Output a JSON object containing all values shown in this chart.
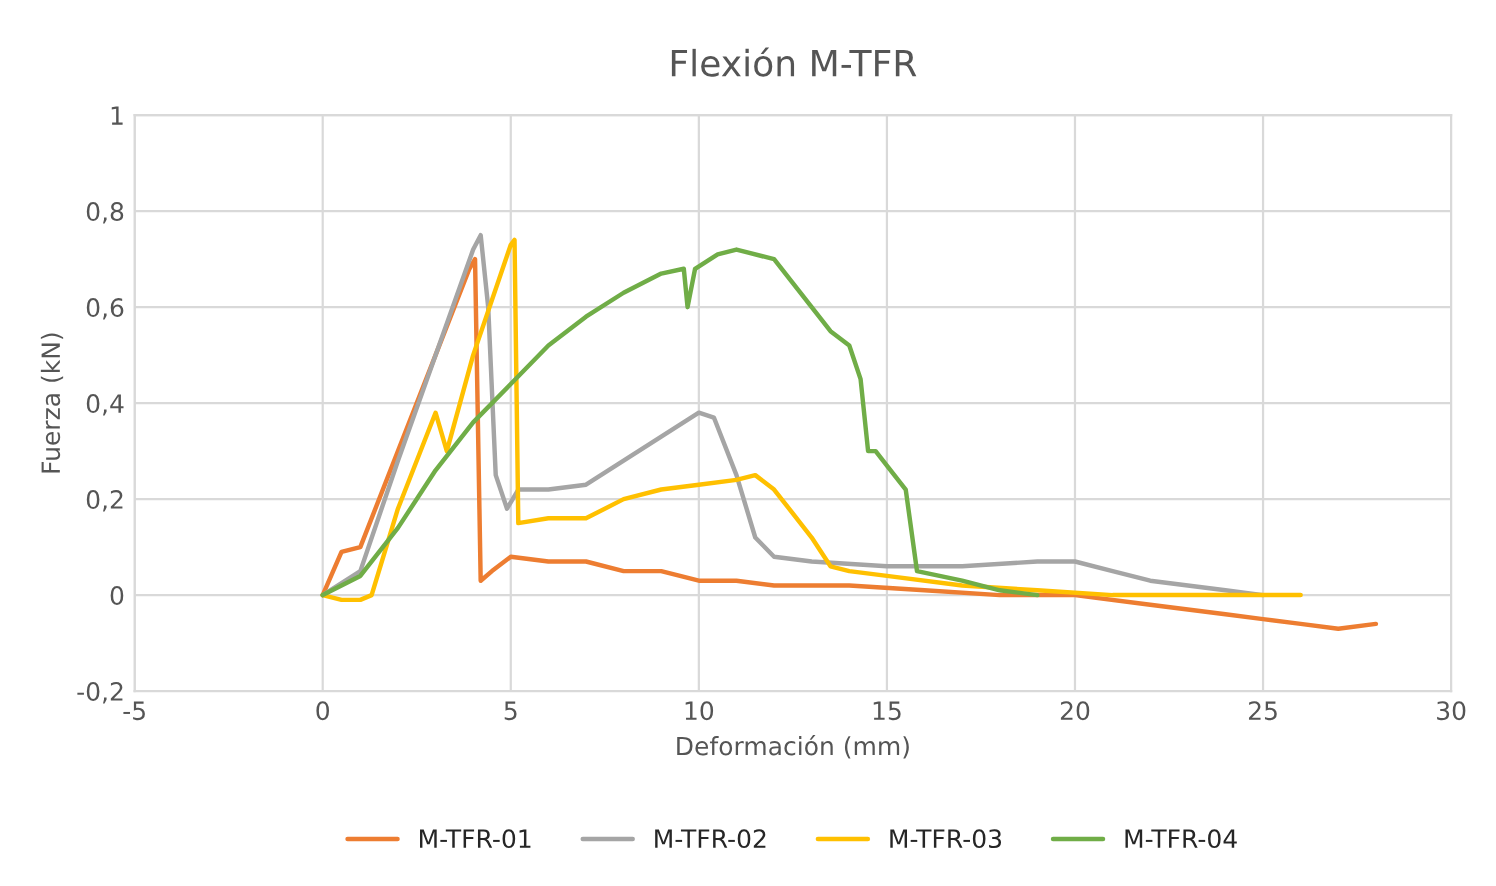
{
  "chart_data": {
    "type": "line",
    "title": "Flexión M-TFR",
    "xlabel": "Deformación (mm)",
    "ylabel": "Fuerza (kN)",
    "xlim": [
      -5,
      30
    ],
    "xticks": [
      -5,
      0,
      5,
      10,
      15,
      20,
      25,
      30
    ],
    "ylim": [
      -0.2,
      1
    ],
    "yticks": [
      {
        "value": -0.2,
        "label": "-0,2"
      },
      0,
      {
        "value": 0.2,
        "label": "0,2"
      },
      {
        "value": 0.4,
        "label": "0,4"
      },
      {
        "value": 0.6,
        "label": "0,6"
      },
      {
        "value": 0.8,
        "label": "0,8"
      },
      1
    ],
    "grid": true,
    "legend": "bottom",
    "marker": "none",
    "line_style": "solid",
    "series": [
      {
        "name": "M-TFR-01",
        "color": "#ed7d31",
        "x": [
          0,
          0.5,
          1,
          2,
          3,
          3.9,
          4.05,
          4.2,
          4.5,
          5,
          6,
          7,
          8,
          9,
          10,
          11,
          12,
          14,
          16,
          18,
          20,
          22,
          24,
          25,
          26,
          27,
          28
        ],
        "values": [
          0,
          0.09,
          0.1,
          0.3,
          0.5,
          0.68,
          0.7,
          0.03,
          0.05,
          0.08,
          0.07,
          0.07,
          0.05,
          0.05,
          0.03,
          0.03,
          0.02,
          0.02,
          0.01,
          0.0,
          0,
          -0.02,
          -0.04,
          -0.05,
          -0.06,
          -0.07,
          -0.06
        ]
      },
      {
        "name": "M-TFR-02",
        "color": "#a5a5a5",
        "x": [
          0,
          1,
          2,
          3,
          4,
          4.2,
          4.4,
          4.6,
          4.9,
          5.2,
          6,
          7,
          8,
          9,
          10,
          10.4,
          11,
          11.5,
          12,
          13,
          15,
          17,
          19,
          20,
          21,
          22,
          24,
          25
        ],
        "values": [
          0,
          0.05,
          0.28,
          0.5,
          0.72,
          0.75,
          0.6,
          0.25,
          0.18,
          0.22,
          0.22,
          0.23,
          0.28,
          0.33,
          0.38,
          0.37,
          0.25,
          0.12,
          0.08,
          0.07,
          0.06,
          0.06,
          0.07,
          0.07,
          0.05,
          0.03,
          0.01,
          0.0
        ]
      },
      {
        "name": "M-TFR-03",
        "color": "#ffc000",
        "x": [
          0,
          0.5,
          1,
          1.3,
          2,
          3,
          3.3,
          4,
          5,
          5.1,
          5.2,
          6,
          7,
          8,
          9,
          10,
          11,
          11.5,
          12,
          13,
          13.5,
          14,
          15,
          17,
          19,
          21,
          23,
          25,
          26
        ],
        "values": [
          0,
          -0.01,
          -0.01,
          0.0,
          0.18,
          0.38,
          0.3,
          0.5,
          0.73,
          0.74,
          0.15,
          0.16,
          0.16,
          0.2,
          0.22,
          0.23,
          0.24,
          0.25,
          0.22,
          0.12,
          0.06,
          0.05,
          0.04,
          0.02,
          0.01,
          0.0,
          0.0,
          0.0,
          0.0
        ]
      },
      {
        "name": "M-TFR-04",
        "color": "#70ad47",
        "x": [
          0,
          1,
          2,
          3,
          4,
          5,
          6,
          7,
          8,
          9,
          9.6,
          9.7,
          9.9,
          10.5,
          11,
          12,
          12.5,
          13,
          13.5,
          14,
          14.3,
          14.5,
          14.7,
          15,
          15.5,
          15.8,
          17,
          18,
          19
        ],
        "values": [
          0,
          0.04,
          0.14,
          0.26,
          0.36,
          0.44,
          0.52,
          0.58,
          0.63,
          0.67,
          0.68,
          0.6,
          0.68,
          0.71,
          0.72,
          0.7,
          0.65,
          0.6,
          0.55,
          0.52,
          0.45,
          0.3,
          0.3,
          0.27,
          0.22,
          0.05,
          0.03,
          0.01,
          0.0
        ]
      }
    ]
  }
}
